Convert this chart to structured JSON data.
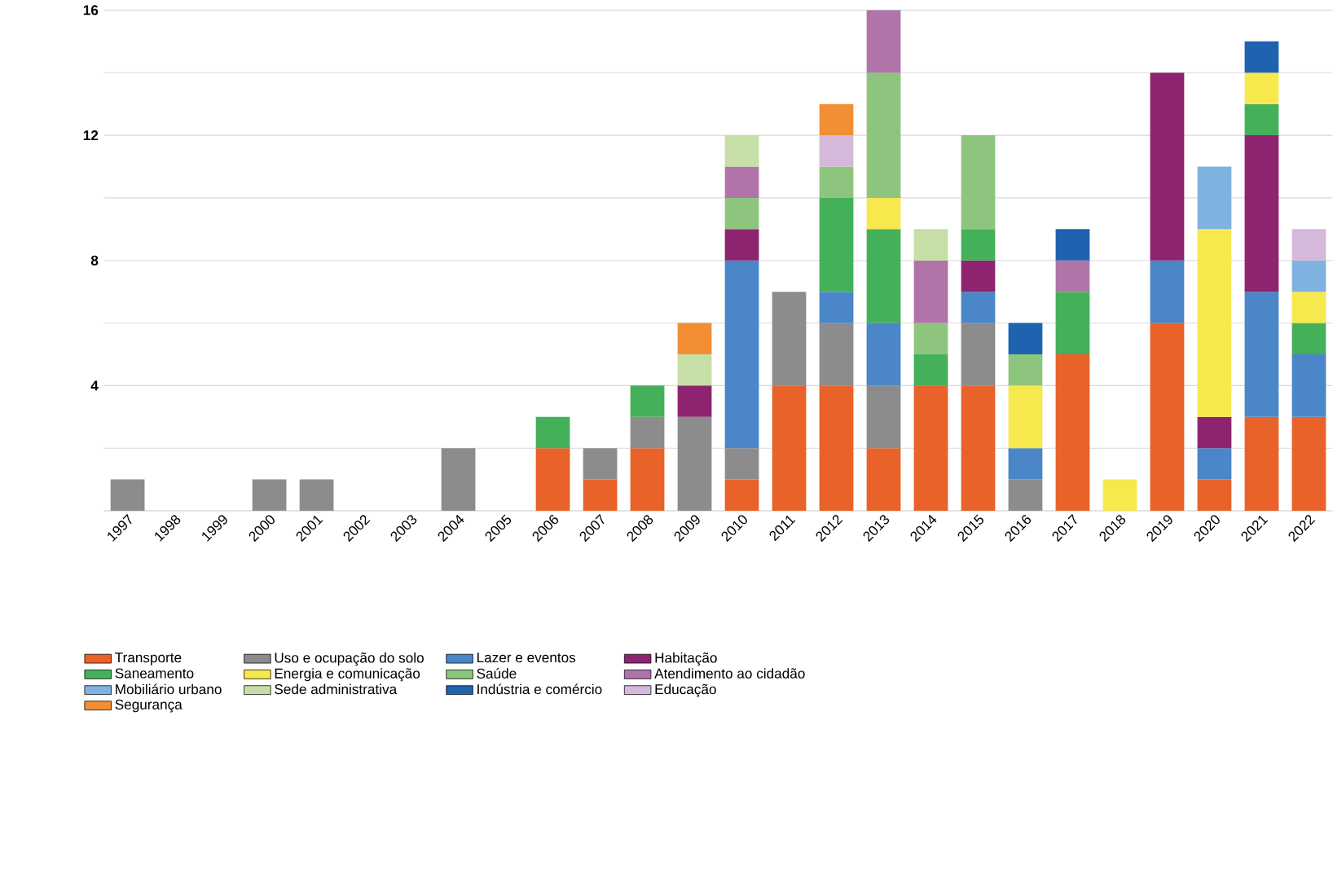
{
  "chart_data": {
    "type": "bar",
    "stacked": true,
    "categories": [
      "1997",
      "1998",
      "1999",
      "2000",
      "2001",
      "2002",
      "2003",
      "2004",
      "2005",
      "2006",
      "2007",
      "2008",
      "2009",
      "2010",
      "2011",
      "2012",
      "2013",
      "2014",
      "2015",
      "2016",
      "2017",
      "2018",
      "2019",
      "2020",
      "2021",
      "2022"
    ],
    "ylim": [
      0,
      16
    ],
    "yticks": [
      {
        "value": 0,
        "label": null
      },
      {
        "value": 2,
        "label": null
      },
      4,
      {
        "value": 6,
        "label": null
      },
      8,
      {
        "value": 10,
        "label": null
      },
      12,
      {
        "value": 14,
        "label": null
      },
      16
    ],
    "grid": "y",
    "legend": "bottom",
    "series": [
      {
        "name": "Transporte",
        "color": "#e8622a",
        "values": [
          null,
          null,
          null,
          null,
          null,
          null,
          null,
          null,
          null,
          2,
          1,
          2,
          null,
          1,
          4,
          4,
          2,
          4,
          4,
          null,
          5,
          null,
          6,
          1,
          3,
          3
        ]
      },
      {
        "name": "Uso e ocupação do solo",
        "color": "#8c8c8c",
        "values": [
          1,
          null,
          null,
          1,
          1,
          null,
          null,
          2,
          null,
          null,
          1,
          1,
          3,
          1,
          3,
          2,
          2,
          null,
          2,
          1,
          null,
          null,
          null,
          null,
          null,
          null
        ]
      },
      {
        "name": "Lazer e eventos",
        "color": "#4a86c8",
        "values": [
          null,
          null,
          null,
          null,
          null,
          null,
          null,
          null,
          null,
          null,
          null,
          null,
          null,
          6,
          null,
          1,
          2,
          null,
          1,
          1,
          null,
          null,
          2,
          1,
          4,
          2
        ]
      },
      {
        "name": "Habitação",
        "color": "#8e2470",
        "values": [
          null,
          null,
          null,
          null,
          null,
          null,
          null,
          null,
          null,
          null,
          null,
          null,
          1,
          1,
          null,
          null,
          null,
          null,
          1,
          null,
          null,
          null,
          6,
          1,
          5,
          null
        ]
      },
      {
        "name": "Saneamento",
        "color": "#45b05a",
        "values": [
          null,
          null,
          null,
          null,
          null,
          null,
          null,
          null,
          null,
          1,
          null,
          1,
          null,
          null,
          null,
          3,
          3,
          1,
          1,
          null,
          2,
          null,
          null,
          null,
          1,
          1
        ]
      },
      {
        "name": "Energia e comunicação",
        "color": "#f7e84e",
        "values": [
          null,
          null,
          null,
          null,
          null,
          null,
          null,
          null,
          null,
          null,
          null,
          null,
          null,
          null,
          null,
          null,
          1,
          null,
          null,
          2,
          null,
          1,
          null,
          6,
          1,
          1
        ]
      },
      {
        "name": "Saúde",
        "color": "#8dc57f",
        "values": [
          null,
          null,
          null,
          null,
          null,
          null,
          null,
          null,
          null,
          null,
          null,
          null,
          null,
          1,
          null,
          1,
          4,
          1,
          3,
          1,
          null,
          null,
          null,
          null,
          null,
          null
        ]
      },
      {
        "name": "Atendimento ao cidadão",
        "color": "#b074a8",
        "values": [
          null,
          null,
          null,
          null,
          null,
          null,
          null,
          null,
          null,
          null,
          null,
          null,
          null,
          1,
          null,
          null,
          2,
          2,
          null,
          null,
          1,
          null,
          null,
          null,
          null,
          null
        ]
      },
      {
        "name": "Mobiliário urbano",
        "color": "#7fb2e0",
        "values": [
          null,
          null,
          null,
          null,
          null,
          null,
          null,
          null,
          null,
          null,
          null,
          null,
          null,
          null,
          null,
          null,
          null,
          null,
          null,
          null,
          null,
          null,
          null,
          2,
          null,
          1
        ]
      },
      {
        "name": "Sede administrativa",
        "color": "#c6dfa6",
        "values": [
          null,
          null,
          null,
          null,
          null,
          null,
          null,
          null,
          null,
          null,
          null,
          null,
          1,
          1,
          null,
          null,
          null,
          1,
          null,
          null,
          null,
          null,
          null,
          null,
          null,
          null
        ]
      },
      {
        "name": "Indústria e comércio",
        "color": "#1f63b0",
        "values": [
          null,
          null,
          null,
          null,
          null,
          null,
          null,
          null,
          null,
          null,
          null,
          null,
          null,
          null,
          null,
          null,
          null,
          null,
          null,
          1,
          1,
          null,
          null,
          null,
          1,
          null
        ]
      },
      {
        "name": "Educação",
        "color": "#d4b9da",
        "values": [
          null,
          null,
          null,
          null,
          null,
          null,
          null,
          null,
          null,
          null,
          null,
          null,
          null,
          null,
          null,
          1,
          null,
          null,
          null,
          null,
          null,
          null,
          null,
          null,
          null,
          1
        ]
      },
      {
        "name": "Segurança",
        "color": "#f28f35",
        "values": [
          null,
          null,
          null,
          null,
          null,
          null,
          null,
          null,
          null,
          null,
          null,
          null,
          1,
          null,
          null,
          1,
          null,
          null,
          null,
          null,
          null,
          null,
          null,
          null,
          null,
          null
        ]
      }
    ]
  }
}
